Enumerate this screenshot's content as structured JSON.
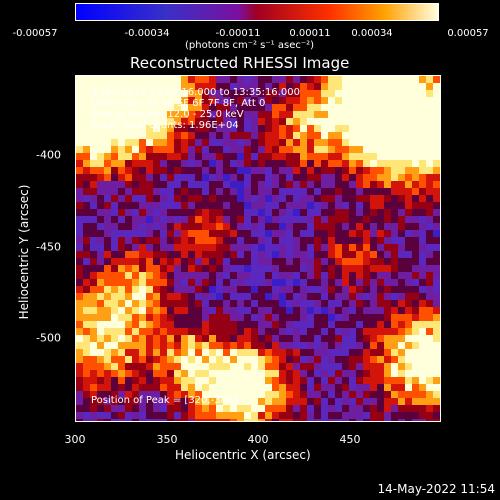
{
  "colorbar": {
    "ticks": [
      "-0.00057",
      "-0.00034",
      "-0.00011",
      "0.00011",
      "0.00034",
      "0.00057"
    ],
    "units": "(photons cm⁻² s⁻¹ asec⁻²)"
  },
  "title": "Reconstructed RHESSI Image",
  "annotations": {
    "time": "3-Jan-2013 13:30:16.000 to 13:35:16.000",
    "detectors": "Detectors: 3F 4F 5F 6F 7F 8F, Att 0",
    "energy": "Energy Range: 12.0 - 25.0 keV",
    "clean": "Clean     Total counts: 1.96E+04",
    "peak": "Position of Peak = [320,-380]"
  },
  "axes": {
    "x_ticks": [
      "300",
      "350",
      "400",
      "450"
    ],
    "y_ticks": [
      "-400",
      "-450",
      "-500"
    ],
    "xlabel": "Heliocentric X (arcsec)",
    "ylabel": "Heliocentric Y (arcsec)"
  },
  "footer": {
    "timestamp": "14-May-2022 11:54"
  },
  "colors": {
    "low": "#1a1aff",
    "mid_low": "#6a28c8",
    "mid": "#c81a1a",
    "high": "#ff8000",
    "peak": "#ffffa0"
  }
}
